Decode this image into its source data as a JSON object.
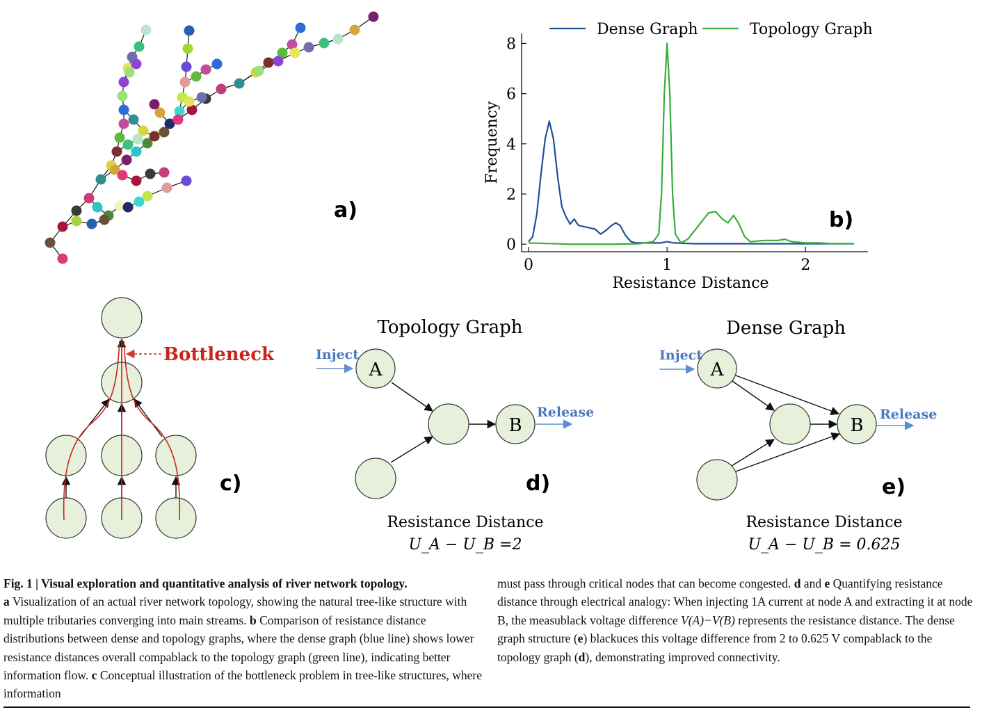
{
  "panel_labels": {
    "a": "a)",
    "b": "b)",
    "c": "c)",
    "d": "d)",
    "e": "e)"
  },
  "chart_data": {
    "type": "line",
    "xlabel": "Resistance Distance",
    "ylabel": "Frequency",
    "xlim": [
      -0.05,
      2.45
    ],
    "ylim": [
      -0.3,
      8.4
    ],
    "xticks": [
      0,
      1,
      2
    ],
    "yticks": [
      0,
      2,
      4,
      6,
      8
    ],
    "legend_placement": "top",
    "series": [
      {
        "name": "Dense Graph",
        "color": "#1f4e99",
        "x": [
          0,
          0.03,
          0.06,
          0.09,
          0.12,
          0.15,
          0.18,
          0.21,
          0.24,
          0.27,
          0.3,
          0.33,
          0.36,
          0.4,
          0.44,
          0.48,
          0.52,
          0.56,
          0.6,
          0.63,
          0.66,
          0.7,
          0.74,
          0.78,
          0.85,
          0.95,
          1.0,
          1.05,
          1.2,
          1.5,
          1.8,
          2.1,
          2.35
        ],
        "y": [
          0.1,
          0.3,
          1.2,
          2.8,
          4.2,
          4.9,
          4.2,
          2.7,
          1.5,
          1.1,
          0.8,
          1.0,
          0.75,
          0.7,
          0.65,
          0.6,
          0.4,
          0.55,
          0.75,
          0.85,
          0.75,
          0.35,
          0.1,
          0.05,
          0.05,
          0.05,
          0.1,
          0.05,
          0.02,
          0.02,
          0.02,
          0.02,
          0.02
        ]
      },
      {
        "name": "Topology Graph",
        "color": "#3aac3a",
        "x": [
          0,
          0.3,
          0.6,
          0.8,
          0.9,
          0.94,
          0.96,
          0.98,
          1.0,
          1.02,
          1.04,
          1.06,
          1.1,
          1.15,
          1.2,
          1.25,
          1.3,
          1.35,
          1.4,
          1.44,
          1.48,
          1.52,
          1.56,
          1.6,
          1.7,
          1.8,
          1.85,
          1.9,
          2.0,
          2.1,
          2.2,
          2.35
        ],
        "y": [
          0.05,
          0.0,
          0.0,
          0.02,
          0.1,
          0.4,
          2.0,
          6.0,
          8.0,
          6.0,
          2.0,
          0.4,
          0.05,
          0.2,
          0.55,
          0.9,
          1.25,
          1.3,
          1.0,
          0.85,
          1.15,
          0.8,
          0.3,
          0.1,
          0.15,
          0.15,
          0.2,
          0.1,
          0.05,
          0.05,
          0.02,
          0.02
        ]
      }
    ]
  },
  "panel_c": {
    "bottleneck_label": "Bottleneck"
  },
  "panel_d": {
    "title": "Topology Graph",
    "node_a": "A",
    "node_b": "B",
    "inject": "Inject",
    "release": "Release",
    "metric_label": "Resistance Distance",
    "metric_value": "U_A − U_B =2"
  },
  "panel_e": {
    "title": "Dense Graph",
    "node_a": "A",
    "node_b": "B",
    "inject": "Inject",
    "release": "Release",
    "metric_label": "Resistance Distance",
    "metric_value": "U_A − U_B = 0.625"
  },
  "caption": {
    "heading": "Fig. 1 | Visual exploration and quantitative analysis of river network topology.",
    "left_text_a": "Visualization of an actual river network topology, showing the natural tree-like structure with multiple tributaries converging into main streams.",
    "left_text_b": "Comparison of resistance distance distributions between dense and topology graphs, where the dense graph (blue line) shows lower resistance distances overall compablack to the topology graph (green line), indicating better information flow.",
    "left_text_c": "Conceptual illustration of the bottleneck problem in tree-like structures, where information",
    "right_text_1": "must pass through critical nodes that can become congested.",
    "right_text_2": "Quantifying resistance distance through electrical analogy: When injecting 1A current at node A and extracting it at node B, the measublack voltage difference",
    "right_formula": "V(A)−V(B)",
    "right_text_3": "represents the resistance distance. The dense graph structure (",
    "right_text_4": ") blackuces this voltage difference from 2 to 0.625 V compablack to the topology graph (",
    "right_text_5": "), demonstrating improved connectivity."
  }
}
